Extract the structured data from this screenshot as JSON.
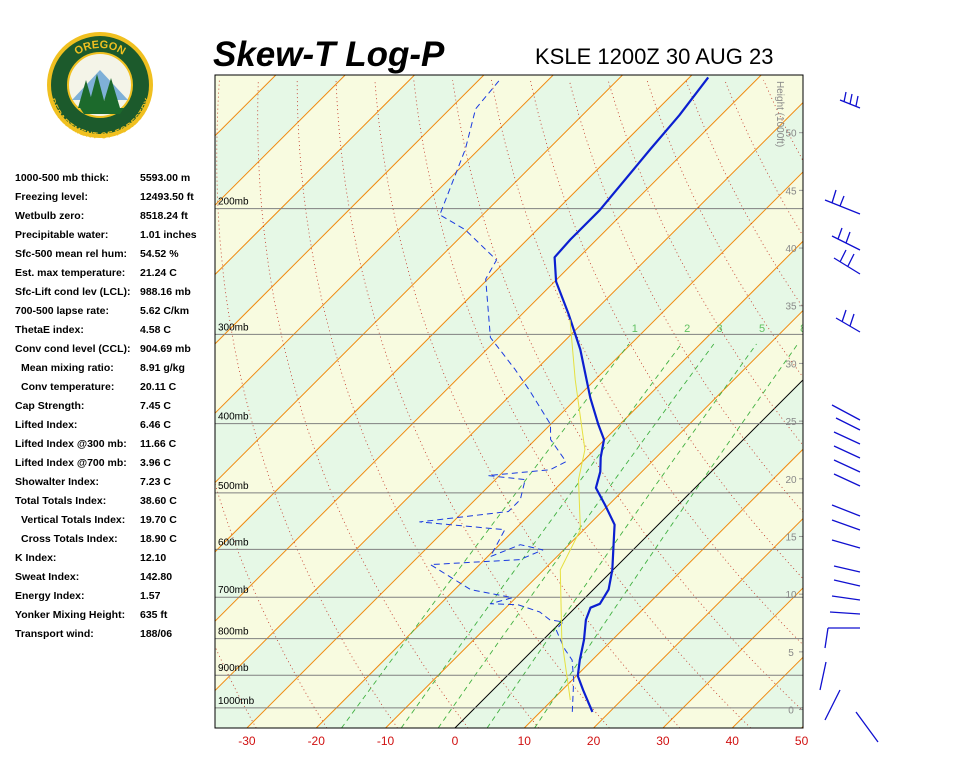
{
  "logo": {
    "top_text": "OREGON",
    "bottom_text": "DEPARTMENT OF FORESTRY"
  },
  "indices": {
    "rows": [
      [
        "1000-500 mb thick:",
        "5593.00 m"
      ],
      [
        "Freezing level:",
        "12493.50 ft"
      ],
      [
        "Wetbulb zero:",
        "8518.24 ft"
      ],
      [
        "Precipitable water:",
        "1.01 inches"
      ],
      [
        "Sfc-500 mean rel hum:",
        "54.52 %"
      ],
      [
        "Est. max temperature:",
        "21.24 C"
      ],
      [
        "Sfc-Lift cond lev (LCL):",
        "988.16 mb"
      ],
      [
        "700-500 lapse rate:",
        "5.62 C/km"
      ],
      [
        "ThetaE index:",
        "4.58 C"
      ],
      [
        "Conv cond level (CCL):",
        "904.69 mb"
      ],
      [
        "Mean mixing ratio:",
        "8.91 g/kg"
      ],
      [
        "Conv temperature:",
        "20.11 C"
      ],
      [
        "Cap Strength:",
        "7.45 C"
      ],
      [
        "Lifted Index:",
        "6.46 C"
      ],
      [
        "Lifted Index @300 mb:",
        "11.66 C"
      ],
      [
        "Lifted Index @700 mb:",
        "3.96 C"
      ],
      [
        "Showalter Index:",
        "7.23 C"
      ],
      [
        "Total Totals Index:",
        "38.60 C"
      ],
      [
        "Vertical Totals Index:",
        "19.70 C"
      ],
      [
        "Cross Totals Index:",
        "18.90 C"
      ],
      [
        "K Index:",
        "12.10"
      ],
      [
        "Sweat Index:",
        "142.80"
      ],
      [
        "Energy Index:",
        "1.57"
      ],
      [
        "Yonker Mixing Height:",
        "635 ft"
      ],
      [
        "Transport wind:",
        "188/06"
      ]
    ]
  },
  "chart_data": {
    "type": "skew-t",
    "title": "Skew-T Log-P",
    "subtitle": "KSLE 1200Z 30 AUG 23",
    "xlim": [
      -34.6,
      50.2
    ],
    "xticks": [
      -30,
      -20,
      -10,
      0,
      10,
      20,
      30,
      40,
      50
    ],
    "ylim": [
      1067,
      130
    ],
    "log_y": true,
    "yticks": [
      {
        "value": 1000,
        "label": "1000mb"
      },
      {
        "value": 900,
        "label": "900mb"
      },
      {
        "value": 800,
        "label": "800mb"
      },
      {
        "value": 700,
        "label": "700mb"
      },
      {
        "value": 600,
        "label": "600mb"
      },
      {
        "value": 500,
        "label": "500mb"
      },
      {
        "value": 400,
        "label": "400mb"
      },
      {
        "value": 300,
        "label": "300mb"
      },
      {
        "value": 200,
        "label": "200mb"
      }
    ],
    "y2label": "Height (1000ft)",
    "y2lim": [
      -1.6,
      55.0
    ],
    "y2ticks": [
      0,
      5,
      10,
      15,
      20,
      25,
      30,
      35,
      40,
      45,
      50
    ],
    "mixing_ratio_lines": [
      1,
      2,
      3,
      5,
      8
    ],
    "series": [
      {
        "color": "#0b1fd0",
        "style": "solid",
        "pressure": [
          1013,
          944,
          902,
          857,
          803,
          753,
          724,
          715,
          683,
          641,
          582,
          554,
          520,
          492,
          467,
          446,
          421,
          401,
          368,
          315,
          281,
          253,
          234,
          221,
          201,
          165,
          148,
          131
        ],
        "values": [
          17.5,
          13.0,
          10.2,
          8.2,
          5.9,
          3.3,
          2.2,
          3.0,
          2.2,
          -0.1,
          -4.2,
          -6.3,
          -10.5,
          -14.3,
          -16.0,
          -18.0,
          -20.1,
          -23.1,
          -28.1,
          -36.5,
          -43.3,
          -49.8,
          -53.5,
          -53.8,
          -53.8,
          -55.3,
          -56.0,
          -57.3
        ]
      },
      {
        "color": "#1a3ae0",
        "style": "dashed",
        "pressure": [
          1013,
          914,
          857,
          829,
          803,
          777,
          758,
          753,
          734,
          717,
          715,
          701,
          683,
          630,
          620,
          601,
          591,
          614,
          563,
          549,
          531,
          511,
          479,
          473,
          464,
          452,
          421,
          401,
          359,
          336,
          303,
          251,
          236,
          214,
          204,
          165,
          145,
          132
        ],
        "values": [
          14.6,
          10.2,
          7.1,
          4.6,
          2.5,
          0.4,
          0.3,
          -1.9,
          -4.5,
          -8.7,
          -12.8,
          -10.5,
          -17.7,
          -27.1,
          -14.9,
          -13.0,
          -17.0,
          -19.6,
          -21.4,
          -34.8,
          -23.5,
          -23.5,
          -25.7,
          -31.6,
          -23.5,
          -22.4,
          -27.8,
          -30.0,
          -38.0,
          -43.0,
          -51.2,
          -60.3,
          -61.5,
          -70.4,
          -76.2,
          -82.0,
          -86.3,
          -87.0
        ]
      },
      {
        "color": "#e6e040",
        "style": "solid",
        "pressure": [
          975,
          803,
          641,
          563,
          479,
          435,
          347,
          286
        ],
        "values": [
          12.6,
          2.7,
          -7.6,
          -10.5,
          -18.0,
          -21.4,
          -32.9,
          -42.3
        ]
      }
    ]
  }
}
